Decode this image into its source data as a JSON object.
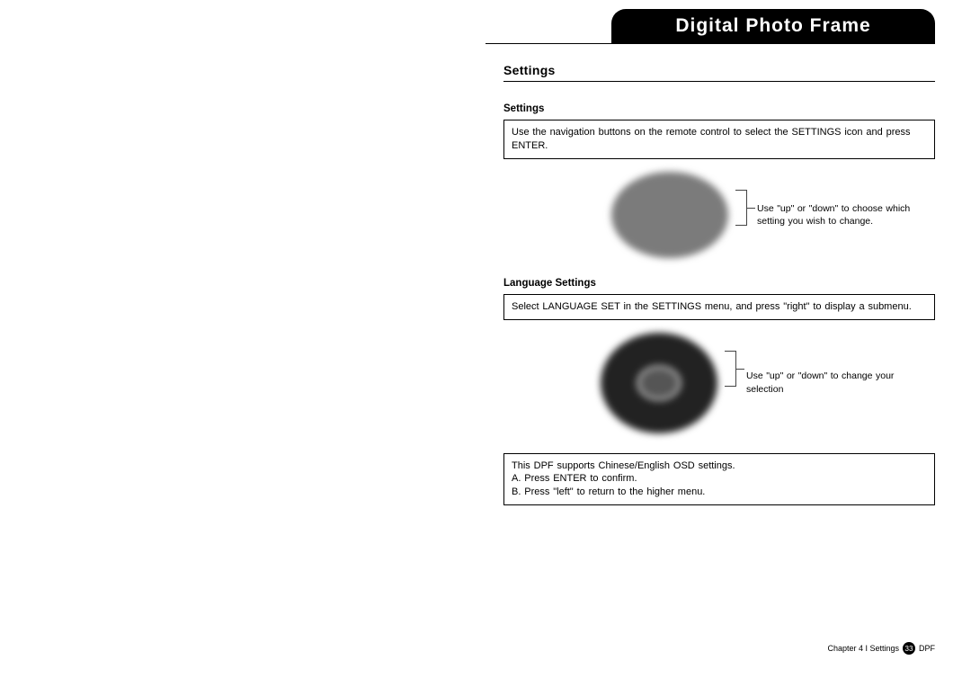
{
  "header": {
    "title": "Digital Photo Frame"
  },
  "section": {
    "title": "Settings"
  },
  "block1": {
    "title": "Settings",
    "body": "Use the navigation buttons on the remote control to select the SETTINGS icon and press ENTER.",
    "callout": "Use \"up\" or \"down\" to choose which setting you wish to change."
  },
  "block2": {
    "title": "Language Settings",
    "body": "Select LANGUAGE SET in the SETTINGS menu, and press \"right\" to display a submenu.",
    "callout": "Use \"up\" or \"down\" to change your selection"
  },
  "block3": {
    "line1": "This DPF supports Chinese/English OSD settings.",
    "line2": "A. Press ENTER to confirm.",
    "line3": "B. Press \"left\" to return to the higher menu."
  },
  "footer": {
    "chapter": "Chapter 4 I Settings",
    "page": "33",
    "suffix": "DPF"
  },
  "style": {
    "tab_bg": "#000000",
    "tab_fg": "#ffffff",
    "oval_color": "#7b7b7b",
    "disc_color": "#222222"
  }
}
